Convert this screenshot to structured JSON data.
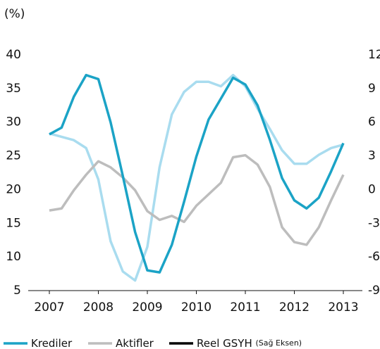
{
  "chart_data": {
    "type": "line",
    "title": "(%)",
    "x": [
      2007,
      2007.25,
      2007.5,
      2007.75,
      2008,
      2008.25,
      2008.5,
      2008.75,
      2009,
      2009.25,
      2009.5,
      2009.75,
      2010,
      2010.25,
      2010.5,
      2010.75,
      2011,
      2011.25,
      2011.5,
      2011.75,
      2012,
      2012.25,
      2012.5,
      2012.75,
      2013
    ],
    "xlim": [
      2007,
      2013
    ],
    "xticks": [
      2007,
      2008,
      2009,
      2010,
      2011,
      2012,
      2013
    ],
    "ylim": [
      5,
      40
    ],
    "yticks": [
      5,
      10,
      15,
      20,
      25,
      30,
      35,
      40
    ],
    "y2lim": [
      -9,
      12
    ],
    "y2ticks": [
      -9,
      -6,
      -3,
      0,
      3,
      6,
      9,
      12
    ],
    "series": [
      {
        "name": "Krediler",
        "color": "#1ba3c6",
        "values": [
          28.2,
          29.2,
          33.8,
          37.0,
          36.4,
          30.0,
          22.0,
          13.7,
          8.0,
          7.7,
          11.8,
          18.2,
          24.9,
          30.4,
          33.5,
          36.6,
          35.6,
          32.5,
          27.4,
          21.7,
          18.4,
          17.2,
          18.8,
          22.7,
          26.9
        ]
      },
      {
        "name": "Aktifler",
        "color": "#bdbdbd",
        "values": [
          16.9,
          17.2,
          19.9,
          22.2,
          24.2,
          23.3,
          21.8,
          19.9,
          16.8,
          15.5,
          16.1,
          15.2,
          17.6,
          19.3,
          21.0,
          24.8,
          25.1,
          23.7,
          20.4,
          14.4,
          12.2,
          11.8,
          14.4,
          18.4,
          22.2
        ]
      },
      {
        "name": "Reel GSYH",
        "legend_note": "(Sağ Eksen)",
        "color": "#a9dcef",
        "legend_color": "#000000",
        "axis": "y2",
        "values": [
          5.0,
          4.7,
          4.4,
          3.7,
          0.9,
          -4.6,
          -7.3,
          -8.1,
          -5.1,
          2.0,
          6.7,
          8.7,
          9.6,
          9.6,
          9.2,
          10.2,
          9.2,
          7.2,
          5.4,
          3.5,
          2.3,
          2.3,
          3.1,
          3.7,
          4.0
        ]
      }
    ]
  }
}
